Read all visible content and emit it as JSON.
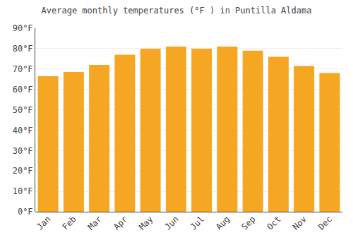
{
  "chart_data": {
    "type": "bar",
    "title": "Average monthly temperatures (°F ) in Puntilla Aldama",
    "categories": [
      "Jan",
      "Feb",
      "Mar",
      "Apr",
      "May",
      "Jun",
      "Jul",
      "Aug",
      "Sep",
      "Oct",
      "Nov",
      "Dec"
    ],
    "values": [
      66.5,
      68.5,
      72.0,
      77.0,
      80.0,
      81.0,
      80.0,
      81.0,
      79.0,
      76.0,
      71.5,
      68.0
    ],
    "color": "#F5A623",
    "ylim": [
      0,
      90
    ],
    "yticks": [
      {
        "value": 0,
        "label": "0°F"
      },
      {
        "value": 10,
        "label": "10°F"
      },
      {
        "value": 20,
        "label": "20°F"
      },
      {
        "value": 30,
        "label": "30°F"
      },
      {
        "value": 40,
        "label": "40°F"
      },
      {
        "value": 50,
        "label": "50°F"
      },
      {
        "value": 60,
        "label": "60°F"
      },
      {
        "value": 70,
        "label": "70°F"
      },
      {
        "value": 80,
        "label": "80°F"
      },
      {
        "value": 90,
        "label": "90°F"
      }
    ],
    "grid": true
  }
}
